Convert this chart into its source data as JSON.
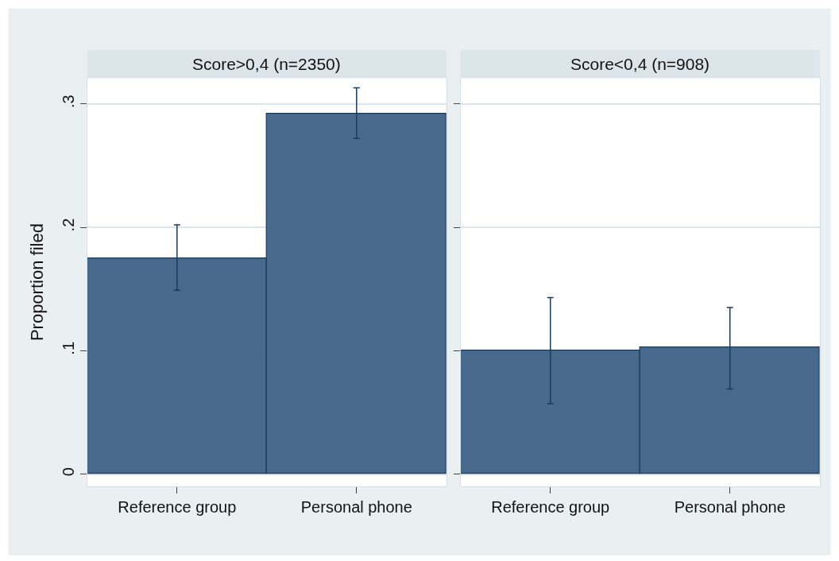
{
  "chart_data": [
    {
      "type": "bar",
      "title": "Score>0,4 (n=2350)",
      "ylabel": "Proportion filed",
      "categories": [
        "Reference group",
        "Personal phone"
      ],
      "values": [
        0.175,
        0.292
      ],
      "errors": [
        [
          0.149,
          0.202
        ],
        [
          0.272,
          0.313
        ]
      ],
      "color": "#476a8c",
      "ylim": [
        -0.01,
        0.321
      ],
      "yticks": [
        0,
        {
          "value": 0.1,
          "label": ".1"
        },
        {
          "value": 0.2,
          "label": ".2"
        },
        {
          "value": 0.3,
          "label": ".3"
        }
      ],
      "grid": "y"
    },
    {
      "type": "bar",
      "title": "Score<0,4 (n=908)",
      "categories": [
        "Reference group",
        "Personal phone"
      ],
      "values": [
        0.1,
        0.103
      ],
      "errors": [
        [
          0.057,
          0.143
        ],
        [
          0.069,
          0.135
        ]
      ],
      "color": "#476a8c",
      "ylim": [
        -0.01,
        0.321
      ],
      "yticks": [
        {
          "value": 0,
          "label": null
        },
        {
          "value": 0.1,
          "label": null
        },
        {
          "value": 0.2,
          "label": null
        },
        {
          "value": 0.3,
          "label": null
        }
      ],
      "grid": "y",
      "tick_labels": "x"
    }
  ]
}
